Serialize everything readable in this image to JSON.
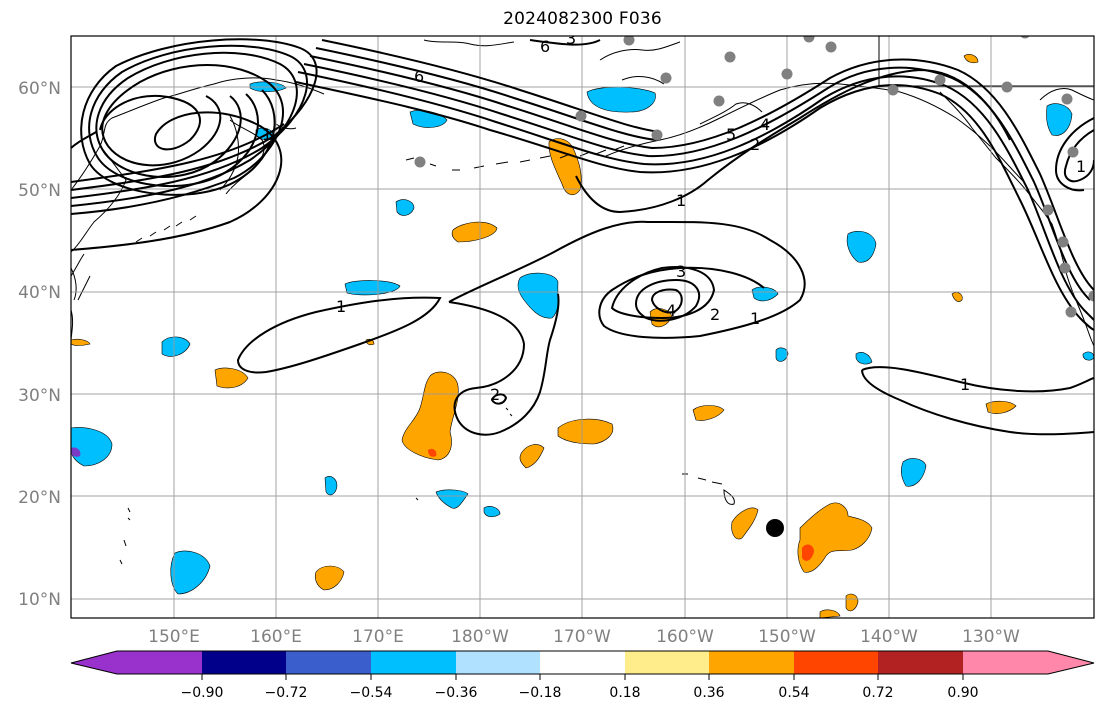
{
  "title": "2024082300 F036",
  "lat_labels": [
    "60°N",
    "50°N",
    "40°N",
    "30°N",
    "20°N",
    "10°N"
  ],
  "lon_labels": [
    "150°E",
    "160°E",
    "170°E",
    "180°W",
    "170°W",
    "160°W",
    "150°W",
    "140°W",
    "130°W"
  ],
  "contour_labels": [
    "6",
    "5",
    "4",
    "3",
    "2",
    "1",
    "1",
    "1",
    "1",
    "1",
    "2",
    "3",
    "4",
    "2",
    "1",
    "6"
  ],
  "colorbar": {
    "tick_labels": [
      "−0.90",
      "−0.72",
      "−0.54",
      "−0.36",
      "−0.18",
      "0.18",
      "0.36",
      "0.54",
      "0.72",
      "0.90"
    ],
    "colors": [
      "#9932cc",
      "#00008b",
      "#3a5fcd",
      "#00bfff",
      "#b0e2ff",
      "#ffffff",
      "#ffec8b",
      "#ffa500",
      "#ff4500",
      "#b22222",
      "#ff88aa"
    ]
  },
  "colors": {
    "grid": "#9a9a9a",
    "axis_label": "#808080",
    "marker_gray": "#808080",
    "marker_black": "#000000"
  }
}
